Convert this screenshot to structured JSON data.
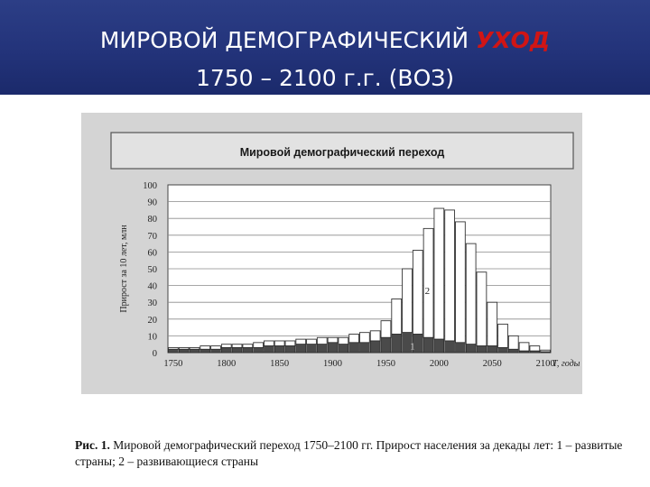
{
  "slide": {
    "title_line1_main": "МИРОВОЙ  ДЕМОГРАФИЧЕСКИЙ ",
    "title_line1_accent": "УХОД",
    "title_line2": "1750 – 2100 г.г.    (ВОЗ)"
  },
  "caption": {
    "label": "Рис. 1.",
    "text": " Мировой демографический переход 1750–2100 гг. Прирост населения за декады лет: 1 – развитые страны; 2 – развивающиеся страны"
  },
  "colors": {
    "header_bg": "#23337a",
    "accent": "#d01515",
    "developed_fill": "#4a4a4a",
    "developing_fill": "#ffffff"
  },
  "chart_data": {
    "type": "bar",
    "title": "Мировой демографический переход",
    "ylabel": "Прирост за 10 лет, млн",
    "xlabel": "T, годы",
    "ylim": [
      0,
      100
    ],
    "yticks": [
      0,
      10,
      20,
      30,
      40,
      50,
      60,
      70,
      80,
      90,
      100
    ],
    "xticks": [
      1750,
      1800,
      1850,
      1900,
      1950,
      2000,
      2050,
      2100
    ],
    "grid": true,
    "stacked": true,
    "x": [
      1750,
      1760,
      1770,
      1780,
      1790,
      1800,
      1810,
      1820,
      1830,
      1840,
      1850,
      1860,
      1870,
      1880,
      1890,
      1900,
      1910,
      1920,
      1930,
      1940,
      1950,
      1960,
      1970,
      1980,
      1990,
      2000,
      2010,
      2020,
      2030,
      2040,
      2050,
      2060,
      2070,
      2080,
      2090,
      2100
    ],
    "series": [
      {
        "name": "1",
        "values": [
          2,
          2,
          2,
          2,
          2,
          3,
          3,
          3,
          3,
          4,
          4,
          4,
          5,
          5,
          5,
          6,
          5,
          6,
          6,
          7,
          9,
          11,
          12,
          11,
          9,
          8,
          7,
          6,
          5,
          4,
          4,
          3,
          2,
          1,
          1,
          0.5
        ]
      },
      {
        "name": "2",
        "values": [
          1,
          1,
          1,
          2,
          2,
          2,
          2,
          2,
          3,
          3,
          3,
          3,
          3,
          3,
          4,
          3,
          4,
          5,
          6,
          6,
          10,
          21,
          38,
          50,
          65,
          78,
          78,
          72,
          60,
          44,
          26,
          14,
          8,
          5,
          3,
          1
        ]
      }
    ],
    "series_labels": [
      "1",
      "2"
    ]
  }
}
